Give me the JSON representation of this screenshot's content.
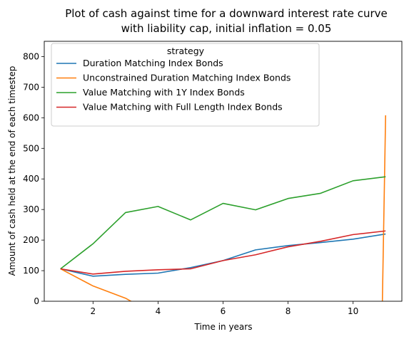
{
  "chart_data": {
    "type": "line",
    "title_line1": "Plot of cash against time for a downward interest rate curve",
    "title_line2": "with liability cap, initial inflation = 0.05",
    "xlabel": "Time in years",
    "ylabel": "Amount of cash held at the end of each timestep",
    "xlim": [
      0.5,
      11.5
    ],
    "ylim": [
      0,
      850
    ],
    "xticks": [
      2,
      4,
      6,
      8,
      10
    ],
    "yticks": [
      0,
      100,
      200,
      300,
      400,
      500,
      600,
      700,
      800
    ],
    "legend": {
      "title": "strategy",
      "position": "upper-left"
    },
    "series": [
      {
        "name": "Duration Matching Index Bonds",
        "color": "#1f77b4",
        "x": [
          1,
          2,
          3,
          4,
          5,
          6,
          7,
          8,
          9,
          10,
          11
        ],
        "y": [
          106,
          82,
          88,
          92,
          110,
          133,
          168,
          182,
          192,
          203,
          220
        ]
      },
      {
        "name": "Unconstrained Duration Matching Index Bonds",
        "color": "#ff7f0e",
        "x": [
          1,
          2,
          3,
          4,
          10.9,
          11
        ],
        "y": [
          106,
          50,
          10,
          -50,
          -5,
          608
        ]
      },
      {
        "name": "Value Matching with 1Y Index Bonds",
        "color": "#2ca02c",
        "x": [
          1,
          2,
          3,
          4,
          5,
          6,
          7,
          8,
          9,
          10,
          11
        ],
        "y": [
          106,
          188,
          290,
          310,
          266,
          320,
          299,
          336,
          353,
          394,
          407
        ]
      },
      {
        "name": "Value Matching with Full Length Index Bonds",
        "color": "#d62728",
        "x": [
          1,
          2,
          3,
          4,
          5,
          6,
          7,
          8,
          9,
          10,
          11
        ],
        "y": [
          106,
          89,
          98,
          103,
          106,
          133,
          152,
          178,
          196,
          218,
          230
        ]
      }
    ]
  }
}
